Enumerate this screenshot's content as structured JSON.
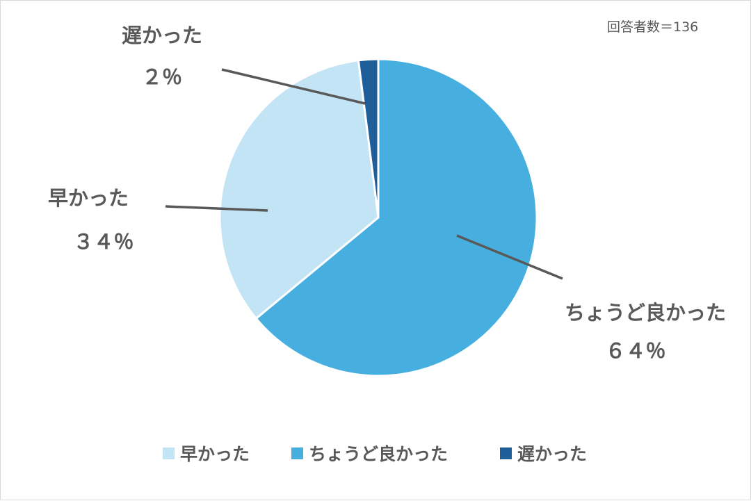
{
  "chart_data": {
    "type": "pie",
    "note": "回答者数＝136",
    "start_angle_deg": 0,
    "direction": "clockwise",
    "legend_position": "bottom",
    "slices": [
      {
        "label": "ちょうど良かった",
        "value": 64,
        "display": "６４％",
        "color": "#47AFDF"
      },
      {
        "label": "早かった",
        "value": 34,
        "display": "３４％",
        "color": "#C3E4F5"
      },
      {
        "label": "遅かった",
        "value": 2,
        "display": "２％",
        "color": "#1F5F99"
      }
    ],
    "legend": [
      {
        "label": "早かった",
        "color": "#C3E4F5"
      },
      {
        "label": "ちょうど良かった",
        "color": "#47AFDF"
      },
      {
        "label": "遅かった",
        "color": "#1F5F99"
      }
    ]
  }
}
